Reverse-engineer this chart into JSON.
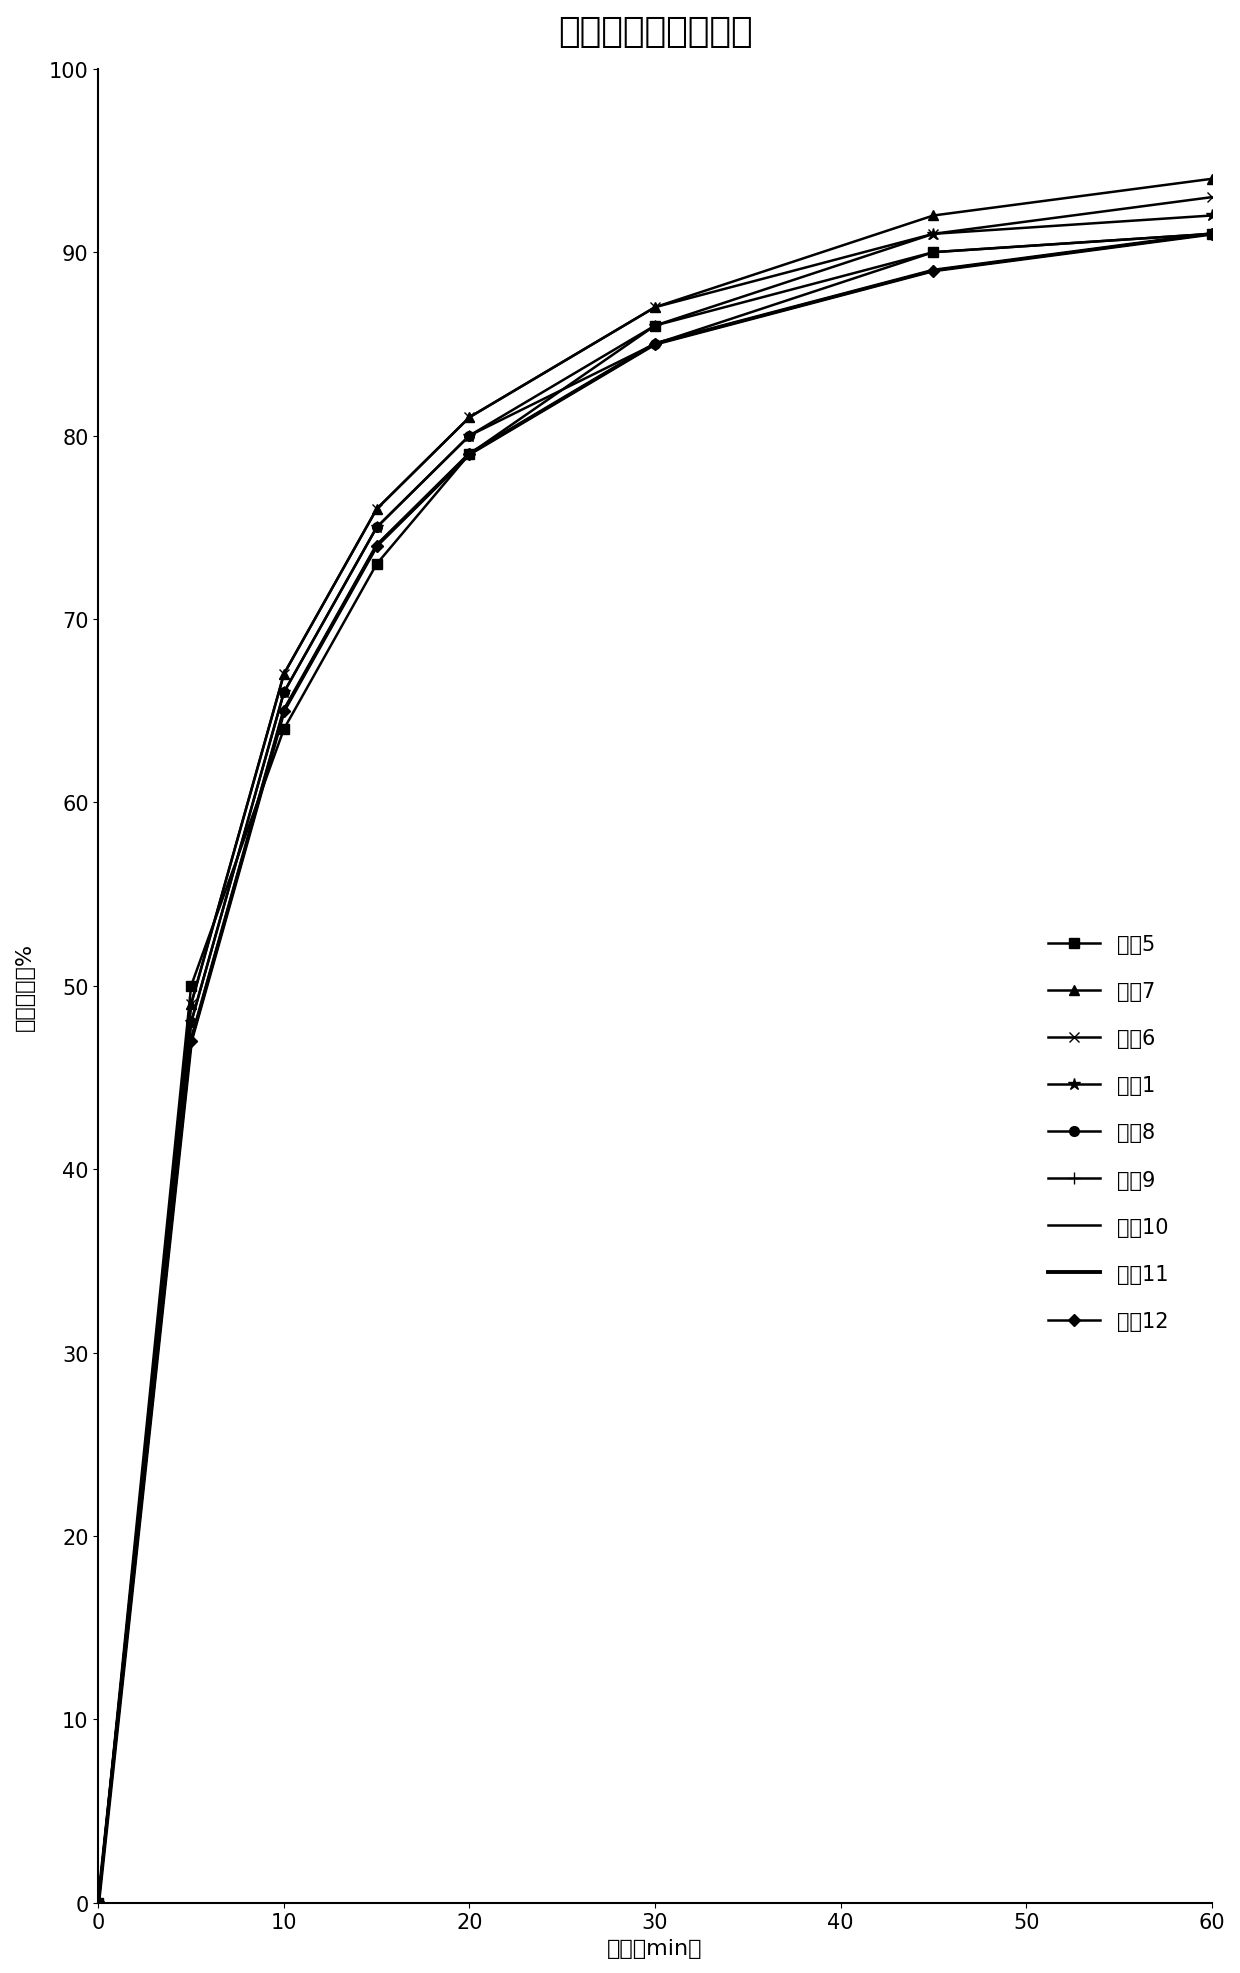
{
  "title": "各产物溶出曲线比较",
  "xlabel": "时间（min）",
  "ylabel": "累积溶出度%",
  "xlim": [
    0,
    60
  ],
  "ylim": [
    0,
    100
  ],
  "xticks": [
    0,
    10,
    20,
    30,
    40,
    50,
    60
  ],
  "yticks": [
    0,
    10,
    20,
    30,
    40,
    50,
    60,
    70,
    80,
    90,
    100
  ],
  "series": [
    {
      "label": "产物5",
      "x": [
        0,
        5,
        10,
        15,
        20,
        30,
        45,
        60
      ],
      "y": [
        0,
        50,
        64,
        73,
        79,
        86,
        90,
        91
      ],
      "marker": "s",
      "color": "#000000",
      "linewidth": 1.8,
      "markersize": 7
    },
    {
      "label": "产物7",
      "x": [
        0,
        5,
        10,
        15,
        20,
        30,
        45,
        60
      ],
      "y": [
        0,
        49,
        67,
        76,
        81,
        87,
        92,
        94
      ],
      "marker": "^",
      "color": "#000000",
      "linewidth": 1.8,
      "markersize": 7
    },
    {
      "label": "产物6",
      "x": [
        0,
        5,
        10,
        15,
        20,
        30,
        45,
        60
      ],
      "y": [
        0,
        49,
        67,
        76,
        81,
        87,
        91,
        93
      ],
      "marker": "x",
      "color": "#000000",
      "linewidth": 1.8,
      "markersize": 7
    },
    {
      "label": "产物1",
      "x": [
        0,
        5,
        10,
        15,
        20,
        30,
        45,
        60
      ],
      "y": [
        0,
        48,
        66,
        75,
        80,
        86,
        91,
        92
      ],
      "marker": "*",
      "color": "#000000",
      "linewidth": 1.8,
      "markersize": 9
    },
    {
      "label": "产物8",
      "x": [
        0,
        5,
        10,
        15,
        20,
        30,
        45,
        60
      ],
      "y": [
        0,
        48,
        66,
        75,
        80,
        85,
        90,
        91
      ],
      "marker": "o",
      "color": "#000000",
      "linewidth": 1.8,
      "markersize": 7
    },
    {
      "label": "产物9",
      "x": [
        0,
        5,
        10,
        15,
        20,
        30,
        45,
        60
      ],
      "y": [
        0,
        47,
        65,
        74,
        79,
        85,
        89,
        91
      ],
      "marker": "+",
      "color": "#000000",
      "linewidth": 1.8,
      "markersize": 9
    },
    {
      "label": "产物10",
      "x": [
        0,
        5,
        10,
        15,
        20,
        30,
        45,
        60
      ],
      "y": [
        0,
        47,
        65,
        74,
        79,
        85,
        89,
        91
      ],
      "marker": "None",
      "color": "#000000",
      "linewidth": 1.8,
      "markersize": 6
    },
    {
      "label": "产物11",
      "x": [
        0,
        5,
        10,
        15,
        20,
        30,
        45,
        60
      ],
      "y": [
        0,
        47,
        65,
        74,
        79,
        85,
        89,
        91
      ],
      "marker": "None",
      "color": "#000000",
      "linewidth": 2.8,
      "markersize": 6
    },
    {
      "label": "产物12",
      "x": [
        0,
        5,
        10,
        15,
        20,
        30,
        45,
        60
      ],
      "y": [
        0,
        47,
        65,
        74,
        79,
        85,
        89,
        91
      ],
      "marker": "D",
      "color": "#000000",
      "linewidth": 1.8,
      "markersize": 6
    }
  ],
  "background_color": "#ffffff",
  "title_fontsize": 26,
  "label_fontsize": 16,
  "tick_fontsize": 15,
  "legend_fontsize": 15
}
